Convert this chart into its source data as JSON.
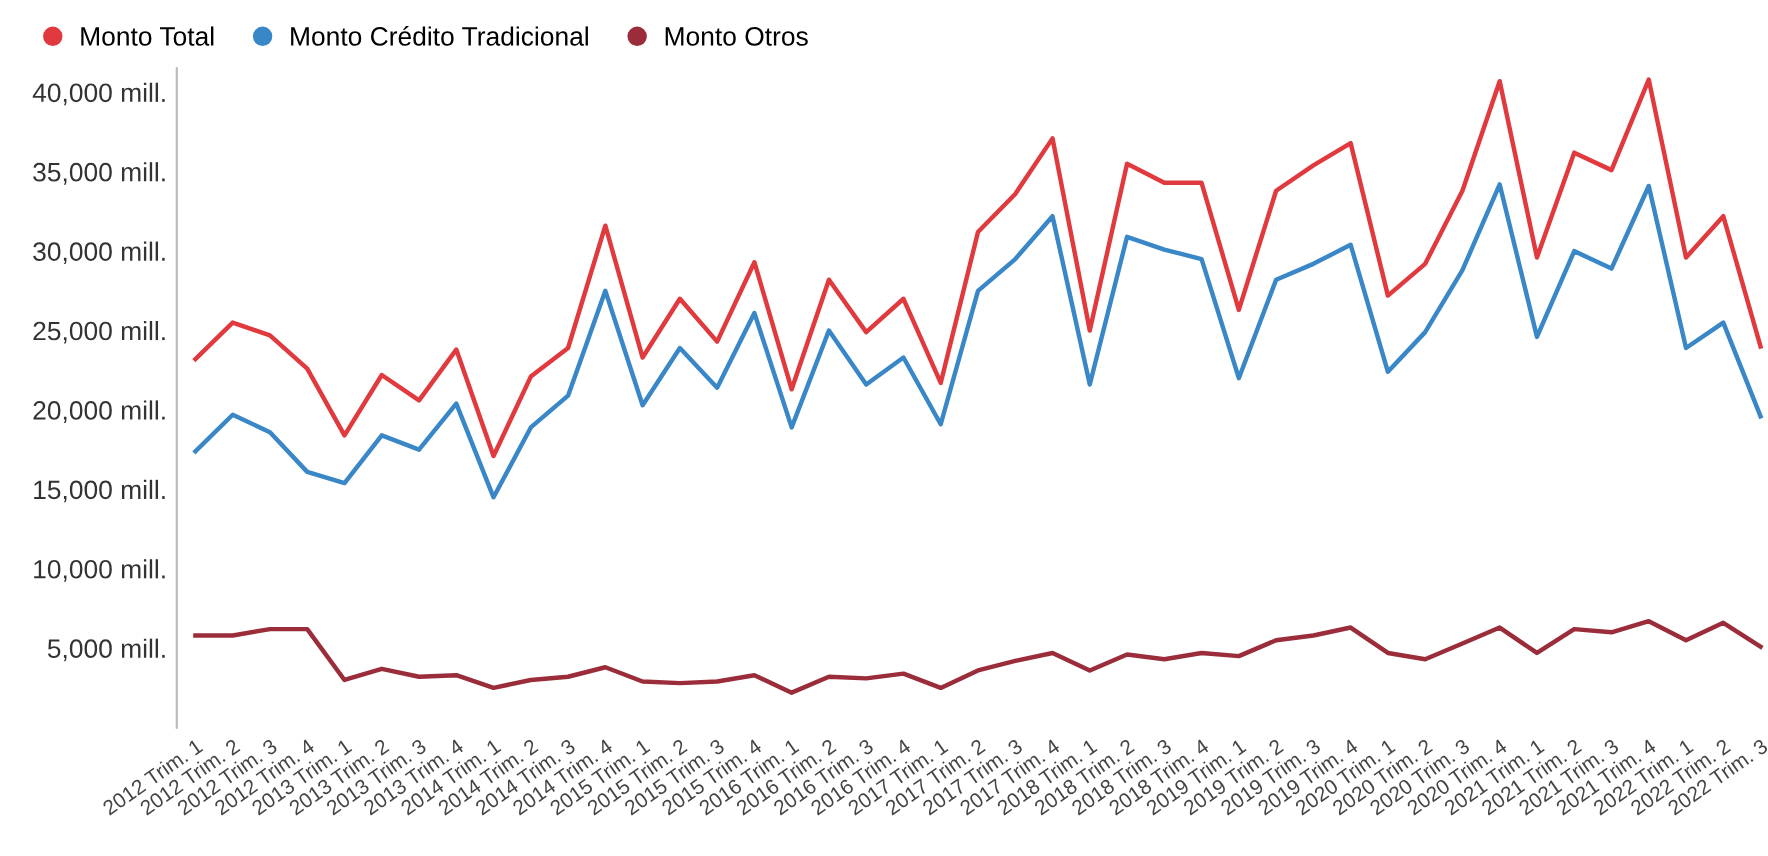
{
  "chart_data": {
    "type": "line",
    "categories": [
      "2012 Trim. 1",
      "2012 Trim. 2",
      "2012 Trim. 3",
      "2012 Trim. 4",
      "2013 Trim. 1",
      "2013 Trim. 2",
      "2013 Trim. 3",
      "2013 Trim. 4",
      "2014 Trim. 1",
      "2014 Trim. 2",
      "2014 Trim. 3",
      "2014 Trim. 4",
      "2015 Trim. 1",
      "2015 Trim. 2",
      "2015 Trim. 3",
      "2015 Trim. 4",
      "2016 Trim. 1",
      "2016 Trim. 2",
      "2016 Trim. 3",
      "2016 Trim. 4",
      "2017 Trim. 1",
      "2017 Trim. 2",
      "2017 Trim. 3",
      "2017 Trim. 4",
      "2018 Trim. 1",
      "2018 Trim. 2",
      "2018 Trim. 3",
      "2018 Trim. 4",
      "2019 Trim. 1",
      "2019 Trim. 2",
      "2019 Trim. 3",
      "2019 Trim. 4",
      "2020 Trim. 1",
      "2020 Trim. 2",
      "2020 Trim. 3",
      "2020 Trim. 4",
      "2021 Trim. 1",
      "2021 Trim. 2",
      "2021 Trim. 3",
      "2021 Trim. 4",
      "2022 Trim. 1",
      "2022 Trim. 2",
      "2022 Trim. 3"
    ],
    "series": [
      {
        "name": "Monto Total",
        "color": "#e0393e",
        "values": [
          23200,
          25500,
          24700,
          22600,
          18400,
          22200,
          20600,
          23800,
          17100,
          22100,
          23900,
          31600,
          23300,
          27000,
          24300,
          29300,
          21300,
          28200,
          24900,
          27000,
          21700,
          31200,
          33600,
          37100,
          25000,
          35500,
          34300,
          34300,
          26300,
          33800,
          35400,
          36800,
          27200,
          29200,
          33800,
          40700,
          29600,
          36200,
          35100,
          40800,
          29600,
          32200,
          24000
        ]
      },
      {
        "name": "Monto Crédito Tradicional",
        "color": "#3a87c8",
        "values": [
          17400,
          19700,
          18600,
          16100,
          15400,
          18400,
          17500,
          20400,
          14500,
          18900,
          20900,
          27500,
          20300,
          23900,
          21400,
          26100,
          18900,
          25000,
          21600,
          23300,
          19100,
          27500,
          29500,
          32200,
          21600,
          30900,
          30100,
          29500,
          22000,
          28200,
          29200,
          30400,
          22400,
          24900,
          28800,
          34200,
          24600,
          30000,
          28900,
          34100,
          23900,
          25500,
          19600
        ]
      },
      {
        "name": "Monto Otros",
        "color": "#9b2d3a",
        "values": [
          5800,
          5800,
          6200,
          6200,
          3000,
          3700,
          3200,
          3300,
          2500,
          3000,
          3200,
          3800,
          2900,
          2800,
          2900,
          3300,
          2200,
          3200,
          3100,
          3400,
          2500,
          3600,
          4200,
          4700,
          3600,
          4600,
          4300,
          4700,
          4500,
          5500,
          5800,
          6300,
          4700,
          4300,
          5300,
          6300,
          4700,
          6200,
          6000,
          6700,
          5500,
          6600,
          5100
        ]
      }
    ],
    "ylim": [
      0,
      41500
    ],
    "yticks": [
      {
        "value": 5000,
        "label": "5,000 mill."
      },
      {
        "value": 10000,
        "label": "10,000 mill."
      },
      {
        "value": 15000,
        "label": "15,000 mill."
      },
      {
        "value": 20000,
        "label": "20,000 mill."
      },
      {
        "value": 25000,
        "label": "25,000 mill."
      },
      {
        "value": 30000,
        "label": "30,000 mill."
      },
      {
        "value": 35000,
        "label": "35,000 mill."
      },
      {
        "value": 40000,
        "label": "40,000 mill."
      }
    ],
    "grid": false,
    "legend": "top left"
  }
}
